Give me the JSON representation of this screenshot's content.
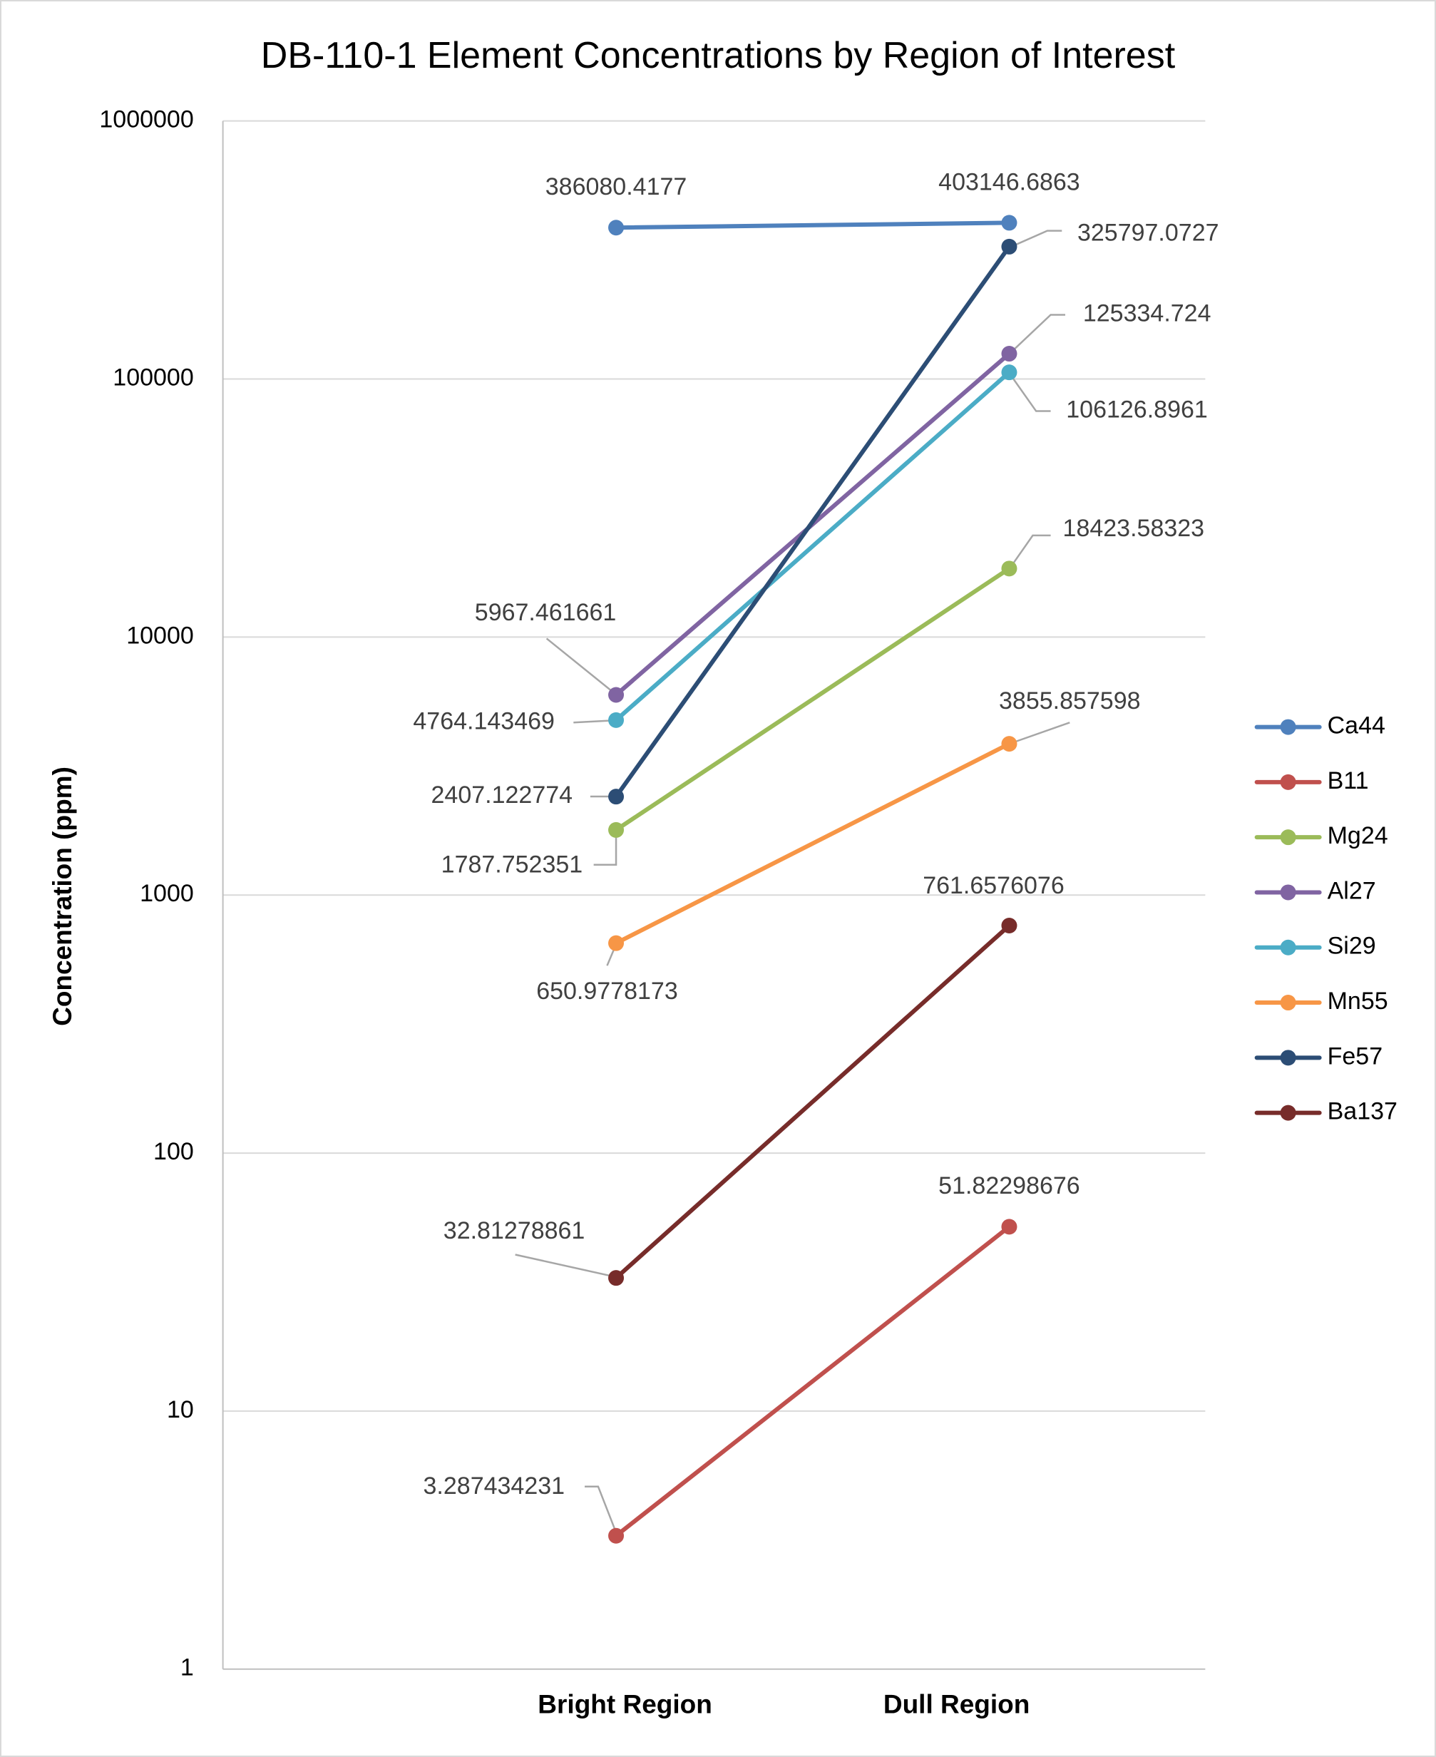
{
  "chart_data": {
    "type": "line",
    "title": "DB-110-1 Element Concentrations by Region of Interest",
    "xlabel": "",
    "ylabel": "Concentration (ppm)",
    "y_scale": "log",
    "ylim": [
      1,
      1000000
    ],
    "y_ticks": [
      "1",
      "10",
      "100",
      "1000",
      "10000",
      "100000",
      "1000000"
    ],
    "grid": true,
    "legend_placement": "right",
    "categories": [
      "Bright Region",
      "Dull Region"
    ],
    "series": [
      {
        "name": "Ca44",
        "color": "#4F81BD",
        "values": [
          386080.4177,
          403146.6863
        ],
        "labels": [
          "386080.4177",
          "403146.6863"
        ]
      },
      {
        "name": "B11",
        "color": "#C0504D",
        "values": [
          3.287434231,
          51.82298676
        ],
        "labels": [
          "3.287434231",
          "51.82298676"
        ]
      },
      {
        "name": "Mg24",
        "color": "#9BBB59",
        "values": [
          1787.752351,
          18423.58323
        ],
        "labels": [
          "1787.752351",
          "18423.58323"
        ]
      },
      {
        "name": "Al27",
        "color": "#8064A2",
        "values": [
          5967.461661,
          125334.724
        ],
        "labels": [
          "5967.461661",
          "125334.724"
        ]
      },
      {
        "name": "Si29",
        "color": "#4BACC6",
        "values": [
          4764.143469,
          106126.8961
        ],
        "labels": [
          "4764.143469",
          "106126.8961"
        ]
      },
      {
        "name": "Mn55",
        "color": "#F79646",
        "values": [
          650.9778173,
          3855.857598
        ],
        "labels": [
          "650.9778173",
          "3855.857598"
        ]
      },
      {
        "name": "Fe57",
        "color": "#2C4D75",
        "values": [
          2407.122774,
          325797.0727
        ],
        "labels": [
          "2407.122774",
          "325797.0727"
        ]
      },
      {
        "name": "Ba137",
        "color": "#772C2A",
        "values": [
          32.81278861,
          761.6576076
        ],
        "labels": [
          "32.81278861",
          "761.6576076"
        ]
      }
    ]
  }
}
